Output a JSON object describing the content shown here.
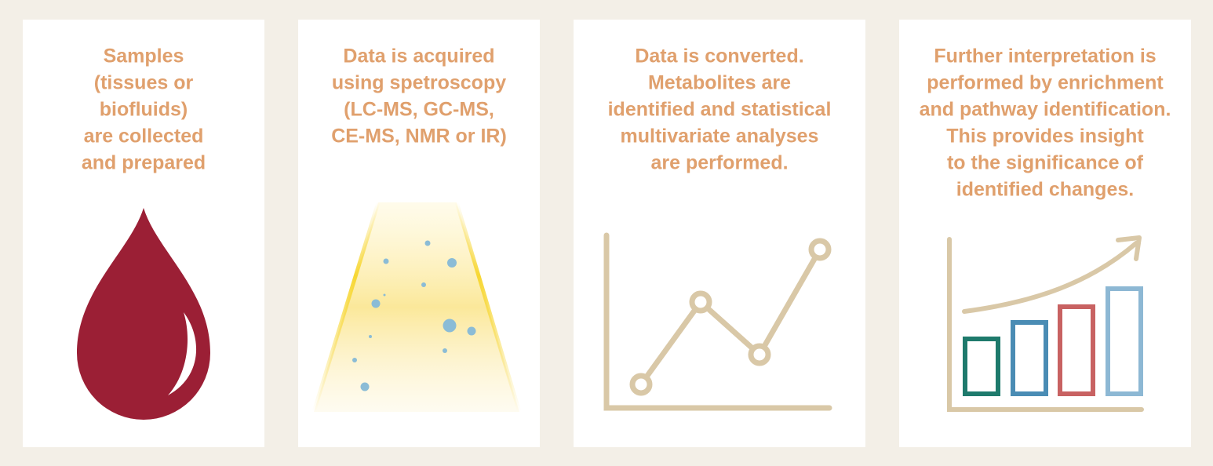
{
  "panels": [
    {
      "lines": [
        "Samples",
        "(tissues or",
        "biofluids)",
        "are collected",
        "and prepared"
      ]
    },
    {
      "lines": [
        "Data is acquired",
        "using spetroscopy",
        "(LC-MS, GC-MS,",
        "CE-MS, NMR or IR)"
      ]
    },
    {
      "lines": [
        "Data is converted.",
        "Metabolites are",
        "identified and statistical",
        "multivariate analyses",
        "are performed."
      ]
    },
    {
      "lines": [
        "Further interpretation is",
        "performed by enrichment",
        "and pathway identification.",
        "This provides insight",
        "to the significance of",
        "identified changes."
      ]
    }
  ]
}
